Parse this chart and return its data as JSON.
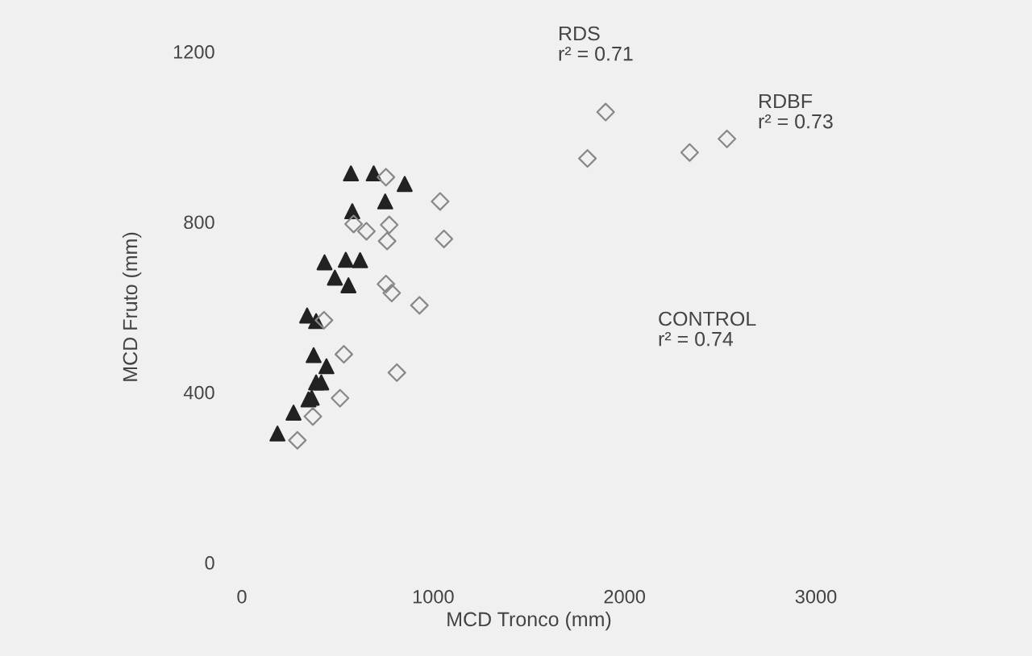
{
  "chart_data": {
    "type": "scatter",
    "xlabel": "MCD Tronco (mm)",
    "ylabel": "MCD Fruto (mm)",
    "xlim": [
      0,
      3000
    ],
    "ylim": [
      0,
      1200
    ],
    "xticks": [
      0,
      1000,
      2000,
      3000
    ],
    "yticks": [
      0,
      400,
      800,
      1200
    ],
    "grid": false,
    "annotations": [
      "RDS\nr² = 0.71",
      "RDBF\nr² = 0.73",
      "CONTROL\nr² = 0.74"
    ],
    "series": [
      {
        "color": "#222222",
        "marker": "triangle",
        "x": [
          186,
          270,
          348,
          365,
          388,
          415,
          442,
          375,
          341,
          388,
          432,
          486,
          557,
          543,
          618,
          577,
          570,
          689,
          749,
          851
        ],
        "values": [
          303,
          352,
          383,
          387,
          423,
          423,
          461,
          487,
          580,
          567,
          705,
          669,
          651,
          711,
          710,
          825,
          914,
          914,
          848,
          889
        ]
      },
      {
        "color": "#888888",
        "marker": "diamond",
        "x": [
          290,
          371,
          513,
          533,
          429,
          810,
          928,
          783,
          753,
          759,
          770,
          651,
          584,
          753,
          1036,
          1056,
          1806,
          1901,
          2340,
          2535
        ],
        "values": [
          287,
          343,
          386,
          489,
          569,
          446,
          604,
          633,
          654,
          755,
          793,
          778,
          795,
          905,
          848,
          760,
          949,
          1058,
          963,
          995
        ]
      }
    ]
  }
}
